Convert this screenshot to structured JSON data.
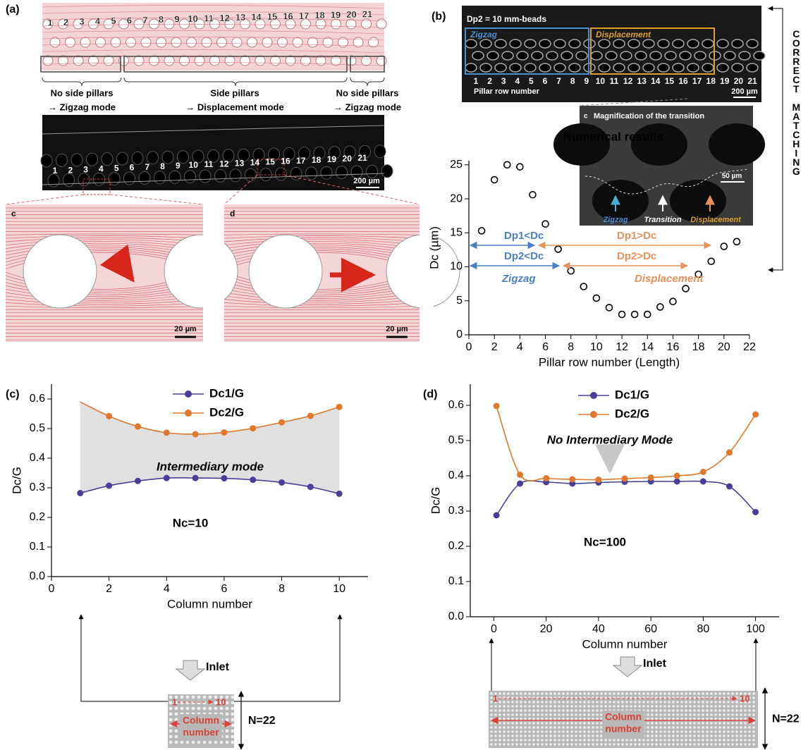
{
  "panel_a": {
    "label": "(a)",
    "row_numbers": [
      "1",
      "2",
      "3",
      "4",
      "5",
      "6",
      "7",
      "8",
      "9",
      "10",
      "11",
      "12",
      "13",
      "14",
      "15",
      "16",
      "17",
      "18",
      "19",
      "20",
      "21"
    ],
    "modes": [
      [
        "No side pillars",
        "→ Zigzag mode"
      ],
      [
        "Side pillars",
        "→ Displacement mode"
      ],
      [
        "No side pillars",
        "→ Zigzag mode"
      ]
    ],
    "scale_bar": "200 µm",
    "zoom_labels": [
      "c",
      "d"
    ],
    "zoom_scale_bar": "20 µm"
  },
  "panel_b": {
    "label": "(b)",
    "bead_label": "Dp2 = 10 mm-beads",
    "region_labels": [
      "Zigzag",
      "Displacement"
    ],
    "axis_caption": "Pillar row number",
    "scale_bar": "200 µm",
    "inset": {
      "label": "c",
      "title": "Magnification of the transition",
      "scale_bar": "50 µm",
      "arrows": [
        "Zigzag",
        "Transition",
        "Displacement"
      ]
    },
    "side_label": "CORRECT MATCHING"
  },
  "panel_c": {
    "label": "(c)",
    "inlet": "Inlet",
    "range_start": "1",
    "range_end": "10",
    "column_caption": [
      "Column",
      "number"
    ],
    "rows": "N=22"
  },
  "panel_d": {
    "label": "(d)",
    "inlet": "Inlet",
    "range_start": "1",
    "range_end": "10",
    "column_caption": [
      "Column",
      "number"
    ],
    "rows": "N=22"
  },
  "chart_data": [
    {
      "type": "scatter",
      "x_label": "Pillar row number (Length)",
      "y_label": "Dc (µm)",
      "x": [
        1,
        2,
        3,
        4,
        5,
        6,
        7,
        8,
        9,
        10,
        11,
        12,
        13,
        14,
        15,
        16,
        17,
        18,
        19,
        20,
        21
      ],
      "values": [
        15.3,
        22.8,
        25,
        24.7,
        20.6,
        16.3,
        12.6,
        9.4,
        7.1,
        5.4,
        4.0,
        3.0,
        3.0,
        3.0,
        4.1,
        4.9,
        6.8,
        8.9,
        10.8,
        13.0,
        13.7
      ],
      "color": "#000000",
      "xlim": [
        0,
        22
      ],
      "xticks": [
        0,
        2,
        4,
        6,
        8,
        10,
        12,
        14,
        16,
        18,
        20,
        22
      ],
      "ylim": [
        0,
        25.6
      ],
      "yticks": [
        0,
        5,
        10,
        15,
        20,
        25
      ],
      "annotations": [
        "Numerical results",
        "Dp1<Dc",
        "Dp2<Dc",
        "Zigzag",
        "Dp1>Dc",
        "Dp2>Dc",
        "Displacement"
      ]
    },
    {
      "type": "line",
      "x_label": "Column number",
      "y_label": "Dc/G",
      "x": [
        1,
        2,
        3,
        4,
        5,
        6,
        7,
        8,
        9,
        10
      ],
      "series": [
        {
          "name": "Dc1/G",
          "color": "#4a3f96",
          "values": [
            0.282,
            0.307,
            0.323,
            0.333,
            0.333,
            0.332,
            0.327,
            0.318,
            0.303,
            0.28
          ]
        },
        {
          "name": "Dc2/G",
          "color": "#e0782e",
          "values": [
            0.59,
            0.542,
            0.507,
            0.486,
            0.481,
            0.487,
            0.501,
            0.521,
            0.543,
            0.573
          ]
        }
      ],
      "shade": "#e0e0e0",
      "xlim": [
        0,
        11
      ],
      "xticks": [
        0,
        2,
        4,
        6,
        8,
        10
      ],
      "ylim": [
        0,
        0.65
      ],
      "yticks": [
        {
          "value": 0,
          "label": "0.0"
        },
        0.1,
        0.2,
        0.3,
        0.4,
        0.5,
        0.6
      ],
      "annotations": [
        "Intermediary mode",
        "Nc=10"
      ]
    },
    {
      "type": "line",
      "x_label": "Column number",
      "y_label": "Dc/G",
      "x": [
        1,
        10,
        20,
        30,
        40,
        50,
        60,
        70,
        80,
        90,
        100
      ],
      "series": [
        {
          "name": "Dc1/G",
          "color": "#4a3f96",
          "values": [
            0.288,
            0.378,
            0.382,
            0.378,
            0.381,
            0.383,
            0.384,
            0.384,
            0.384,
            0.37,
            0.297
          ]
        },
        {
          "name": "Dc2/G",
          "color": "#e0782e",
          "values": [
            0.598,
            0.403,
            0.393,
            0.39,
            0.389,
            0.392,
            0.395,
            0.4,
            0.411,
            0.466,
            0.574
          ]
        }
      ],
      "xlim": [
        -9,
        109
      ],
      "xticks": [
        0,
        20,
        40,
        60,
        80,
        100
      ],
      "ylim": [
        0,
        0.66
      ],
      "yticks": [
        {
          "value": 0,
          "label": "0.0"
        },
        0.1,
        0.2,
        0.3,
        0.4,
        0.5,
        0.6
      ],
      "annotations": [
        "No Intermediary Mode",
        "Nc=100"
      ]
    }
  ]
}
